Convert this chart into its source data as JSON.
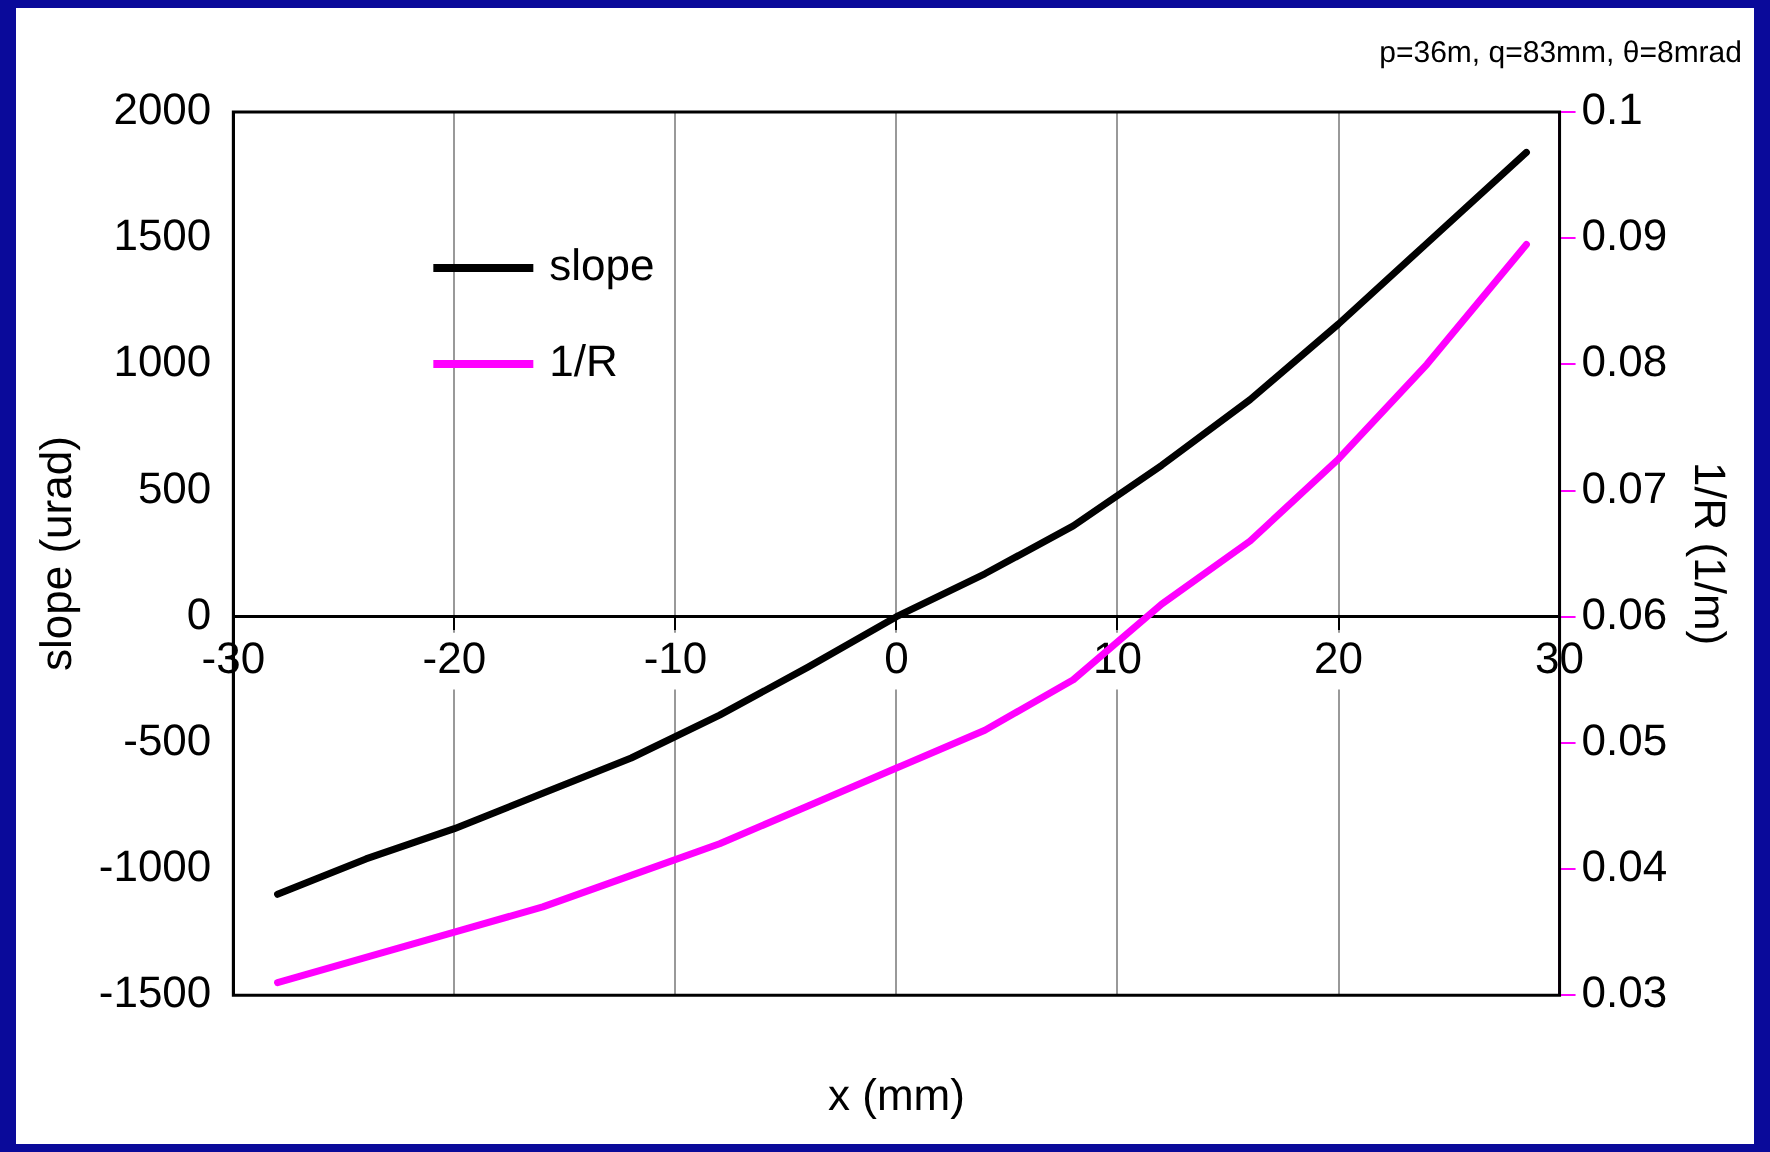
{
  "chart_data": {
    "type": "line",
    "title": "p=36m, q=83mm, θ=8mrad",
    "xlabel": "x (mm)",
    "ylabel": "slope (urad)",
    "y2label": "1/R (1/m)",
    "xlim": [
      -30,
      30
    ],
    "xticks": [
      -30,
      -20,
      -10,
      0,
      10,
      20,
      30
    ],
    "ylim": [
      -1500,
      2000
    ],
    "yticks": [
      -1500,
      -1000,
      -500,
      0,
      500,
      1000,
      1500,
      2000
    ],
    "y2lim": [
      0.03,
      0.1
    ],
    "y2ticks": [
      0.03,
      0.04,
      0.05,
      0.06,
      0.07,
      0.08,
      0.09,
      0.1
    ],
    "grid": "x",
    "legend": "top left",
    "marker": "none",
    "line_style": "solid",
    "series": [
      {
        "name": "slope",
        "color": "#000000",
        "x": [
          -28,
          -24,
          -20,
          -16,
          -12,
          -8,
          -4,
          0,
          4,
          8,
          12,
          16,
          20,
          24,
          28.5
        ],
        "values": [
          -1100,
          -960,
          -840,
          -700,
          -560,
          -390,
          -200,
          0,
          170,
          360,
          600,
          860,
          1160,
          1480,
          1840
        ]
      },
      {
        "name": "1/R",
        "color": "#ff00ff",
        "axis": "y2",
        "x": [
          -28,
          -24,
          -20,
          -16,
          -12,
          -8,
          -4,
          0,
          4,
          8,
          12,
          16,
          20,
          24,
          28.5
        ],
        "values": [
          0.031,
          0.033,
          0.035,
          0.037,
          0.0395,
          0.042,
          0.045,
          0.048,
          0.051,
          0.055,
          0.061,
          0.066,
          0.0725,
          0.08,
          0.0895
        ]
      }
    ]
  }
}
